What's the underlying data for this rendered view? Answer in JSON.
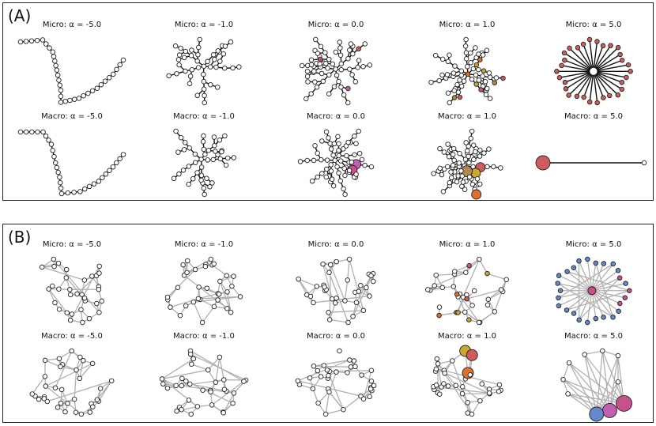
{
  "panels": [
    {
      "label": "(A)",
      "rows": [
        [
          "Micro: α = -5.0",
          "Micro: α = -1.0",
          "Micro: α = 0.0",
          "Micro: α = 1.0",
          "Micro: α = 5.0"
        ],
        [
          "Macro: α = -5.0",
          "Macro: α = -1.0",
          "Macro: α = 0.0",
          "Macro: α = 1.0",
          "Macro: α = 5.0"
        ]
      ]
    },
    {
      "label": "(B)",
      "rows": [
        [
          "Micro: α = -5.0",
          "Micro: α = -1.0",
          "Micro: α = 0.0",
          "Micro: α = 1.0",
          "Micro: α = 5.0"
        ],
        [
          "Macro: α = -5.0",
          "Macro: α = -1.0",
          "Macro: α = 0.0",
          "Macro: α = 1.0",
          "Macro: α = 5.0"
        ]
      ]
    }
  ],
  "colors": {
    "node_fill": "#ffffff",
    "node_stroke": "#222222",
    "tree_edge": "#111111",
    "mesh_edge": "#b0b0b0",
    "red": "#cd5c5c",
    "pink": "#c8508c",
    "magenta": "#c060b0",
    "orange": "#dd7030",
    "olive": "#c8a830",
    "tan": "#b08850",
    "blue": "#6688cc"
  }
}
